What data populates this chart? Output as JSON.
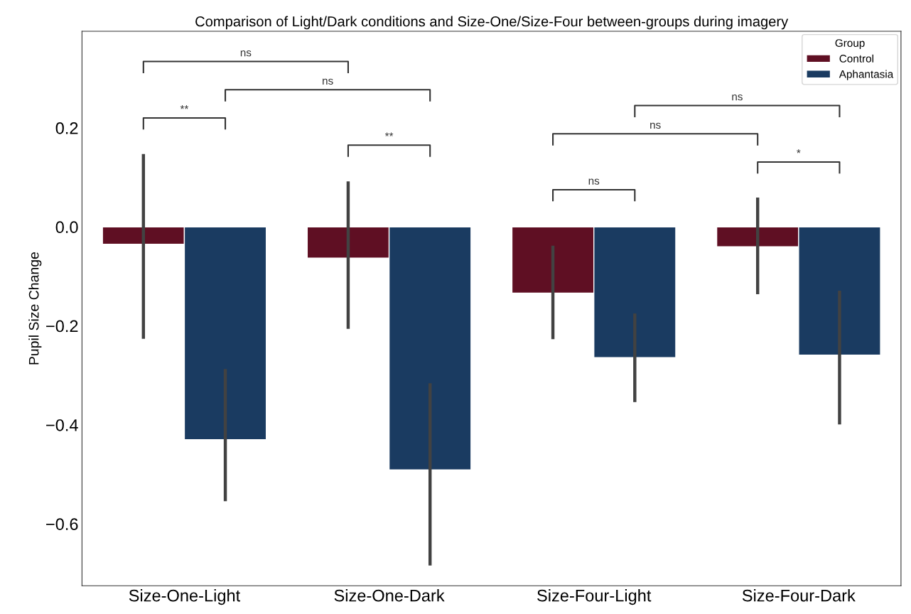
{
  "chart_data": {
    "type": "bar",
    "title": "Comparison of Light/Dark conditions and Size-One/Size-Four between-groups during imagery",
    "ylabel": "Pupil Size Change",
    "legend_title": "Group",
    "legend": "top right",
    "grid": false,
    "categories": [
      "Size-One-Light",
      "Size-One-Dark",
      "Size-Four-Light",
      "Size-Four-Dark"
    ],
    "series": [
      {
        "name": "Control",
        "color": "#5f0f23",
        "values": [
          -0.035,
          -0.063,
          -0.134,
          -0.04
        ],
        "errors": [
          [
            -0.226,
            0.147
          ],
          [
            -0.206,
            0.092
          ],
          [
            -0.227,
            -0.038
          ],
          [
            -0.136,
            0.059
          ]
        ]
      },
      {
        "name": "Aphantasia",
        "color": "#1a3b61",
        "values": [
          -0.43,
          -0.491,
          -0.264,
          -0.259
        ],
        "errors": [
          [
            -0.554,
            -0.287
          ],
          [
            -0.684,
            -0.316
          ],
          [
            -0.354,
            -0.175
          ],
          [
            -0.399,
            -0.129
          ]
        ]
      }
    ],
    "ylim": [
      -0.725,
      0.395
    ],
    "yticks": [
      {
        "value": -0.6,
        "label": "−0.6"
      },
      {
        "value": -0.4,
        "label": "−0.4"
      },
      {
        "value": -0.2,
        "label": "−0.2"
      },
      {
        "value": 0.0,
        "label": "0.0"
      },
      {
        "value": 0.2,
        "label": "0.2"
      }
    ],
    "annotations": [
      "ns",
      "ns",
      "**",
      "**",
      "ns",
      "ns",
      "*",
      "ns"
    ]
  }
}
